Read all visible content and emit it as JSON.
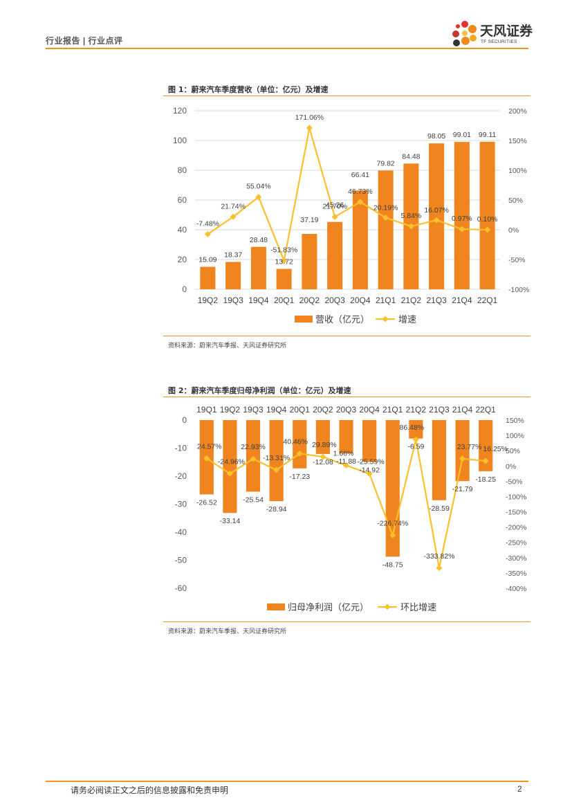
{
  "header": {
    "title": "行业报告 | 行业点评"
  },
  "logo": {
    "name": "天风证券",
    "sub": "TF SECURITIES"
  },
  "figures": [
    {
      "title": "图 1：蔚来汽车季度营收（单位：亿元）及增速",
      "source": "资料来源：蔚来汽车季报、天风证券研究所"
    },
    {
      "title": "图 2：蔚来汽车季度归母净利润（单位：亿元）及增速",
      "source": "资料来源：蔚来汽车季报、天风证券研究所"
    }
  ],
  "footer": {
    "disclaimer": "请务必阅读正文之后的信息披露和免责申明",
    "page": "2"
  },
  "colors": {
    "bar": "#f0841f",
    "line": "#fbc02d",
    "accent": "#f0941c"
  },
  "chart_data": [
    {
      "type": "bar+line",
      "title": "图 1：蔚来汽车季度营收（单位：亿元）及增速",
      "categories": [
        "19Q2",
        "19Q3",
        "19Q4",
        "20Q1",
        "20Q2",
        "20Q3",
        "20Q4",
        "21Q1",
        "21Q2",
        "21Q3",
        "21Q4",
        "22Q1"
      ],
      "series": [
        {
          "name": "营收（亿元）",
          "type": "bar",
          "axis": "left",
          "values": [
            15.09,
            18.37,
            28.48,
            13.72,
            37.19,
            45.26,
            66.41,
            79.82,
            84.48,
            98.05,
            99.01,
            99.11
          ],
          "labels": [
            "15.09",
            "18.37",
            "28.48",
            "13.72",
            "37.19",
            "45.26",
            "66.41",
            "79.82",
            "84.48",
            "98.05",
            "99.01",
            "99.11"
          ]
        },
        {
          "name": "增速",
          "type": "line",
          "axis": "right",
          "values": [
            -7.48,
            21.74,
            55.04,
            -51.83,
            171.06,
            21.7,
            46.73,
            20.19,
            5.84,
            16.07,
            0.97,
            0.1
          ],
          "labels": [
            "-7.48%",
            "21.74%",
            "55.04%",
            "-51.83%",
            "171.06%",
            "21.70%",
            "46.73%",
            "20.19%",
            "5.84%",
            "16.07%",
            "0.97%",
            "0.10%"
          ]
        }
      ],
      "left_axis": {
        "min": 0,
        "max": 120,
        "ticks": [
          "0",
          "20",
          "40",
          "60",
          "80",
          "100",
          "120"
        ]
      },
      "right_axis": {
        "min": -100,
        "max": 200,
        "ticks": [
          "-100%",
          "-50%",
          "0%",
          "50%",
          "100%",
          "150%",
          "200%"
        ]
      },
      "legend": {
        "position": "bottom",
        "items": [
          "营收（亿元）",
          "增速"
        ]
      },
      "grid": true
    },
    {
      "type": "bar+line",
      "title": "图 2：蔚来汽车季度归母净利润（单位：亿元）及增速",
      "categories": [
        "19Q1",
        "19Q2",
        "19Q3",
        "19Q4",
        "20Q1",
        "20Q2",
        "20Q3",
        "20Q4",
        "21Q1",
        "21Q2",
        "21Q3",
        "21Q4",
        "22Q1"
      ],
      "series": [
        {
          "name": "归母净利润（亿元）",
          "type": "bar",
          "axis": "left",
          "values": [
            -26.52,
            -33.14,
            -25.54,
            -28.94,
            -17.23,
            -12.08,
            -11.88,
            -14.92,
            -48.75,
            -6.59,
            -28.59,
            -21.79,
            -18.25
          ],
          "labels": [
            "-26.52",
            "-33.14",
            "-25.54",
            "-28.94",
            "-17.23",
            "-12.08",
            "-11.88",
            "-14.92",
            "-48.75",
            "-6.59",
            "-28.59",
            "-21.79",
            "-18.25"
          ]
        },
        {
          "name": "环比增速",
          "type": "line",
          "axis": "right",
          "values": [
            24.57,
            -24.96,
            22.93,
            -13.31,
            40.46,
            29.89,
            1.66,
            -25.59,
            -226.74,
            86.48,
            -333.82,
            23.77,
            16.25
          ],
          "labels": [
            "24.57%",
            "-24.96%",
            "22.93%",
            "-13.31%",
            "40.46%",
            "29.89%",
            "1.66%",
            "-25.59%",
            "-226.74%",
            "86.48%",
            "-333.82%",
            "23.77%",
            "16.25%"
          ]
        }
      ],
      "left_axis": {
        "min": -60,
        "max": 0,
        "ticks": [
          "0",
          "-10",
          "-20",
          "-30",
          "-40",
          "-50",
          "-60"
        ]
      },
      "right_axis": {
        "min": -400,
        "max": 150,
        "ticks": [
          "150%",
          "100%",
          "50%",
          "0%",
          "-50%",
          "-100%",
          "-150%",
          "-200%",
          "-250%",
          "-300%",
          "-350%",
          "-400%"
        ]
      },
      "legend": {
        "position": "bottom",
        "items": [
          "归母净利润（亿元）",
          "环比增速"
        ]
      },
      "grid": false
    }
  ]
}
